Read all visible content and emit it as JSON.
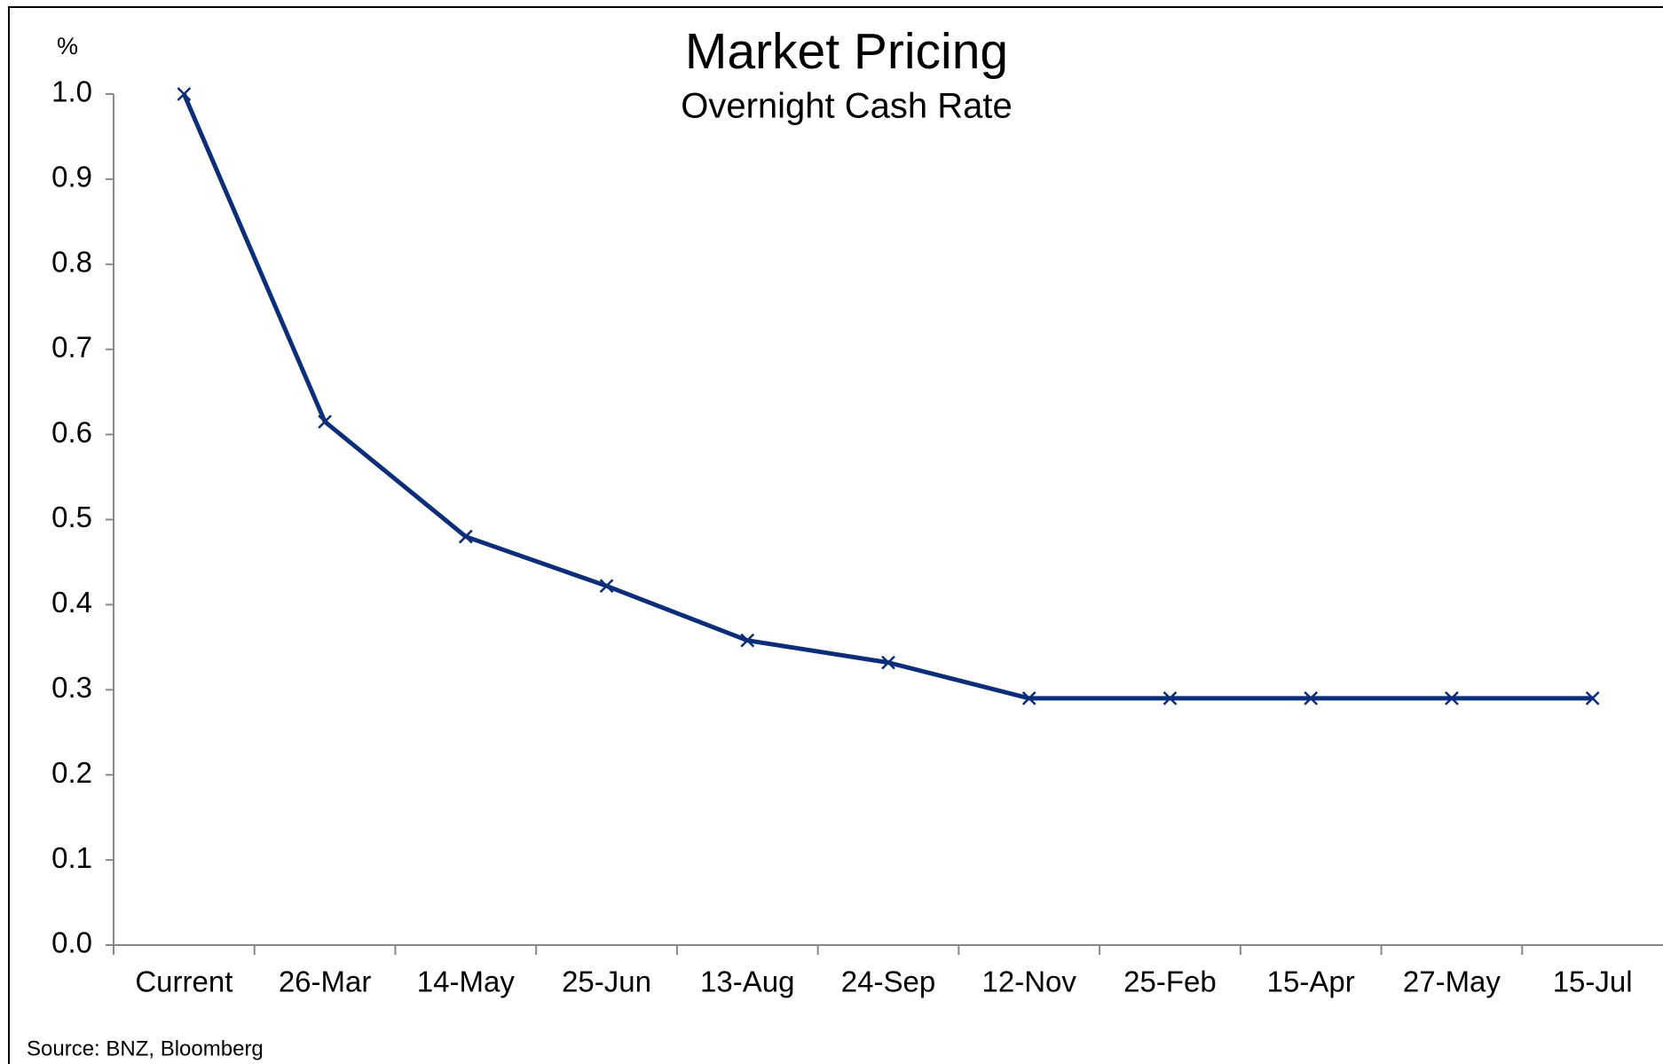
{
  "chart_data": {
    "type": "line",
    "title": "Market Pricing",
    "subtitle": "Overnight Cash Rate",
    "y_axis_label": "%",
    "source": "Source: BNZ, Bloomberg",
    "categories": [
      "Current",
      "26-Mar",
      "14-May",
      "25-Jun",
      "13-Aug",
      "24-Sep",
      "12-Nov",
      "25-Feb",
      "15-Apr",
      "27-May",
      "15-Jul"
    ],
    "series": [
      {
        "name": "Overnight Cash Rate",
        "color": "#0c2d78",
        "values": [
          1.0,
          0.615,
          0.48,
          0.422,
          0.358,
          0.332,
          0.29,
          0.29,
          0.29,
          0.29,
          0.29
        ]
      }
    ],
    "ylim": [
      0,
      1
    ],
    "yticks": [
      {
        "value": 0,
        "label": "0.0"
      },
      0.1,
      0.2,
      0.3,
      0.4,
      0.5,
      0.6,
      0.7,
      0.8,
      0.9,
      {
        "value": 1,
        "label": "1.0"
      }
    ],
    "grid": false,
    "legend": false
  }
}
